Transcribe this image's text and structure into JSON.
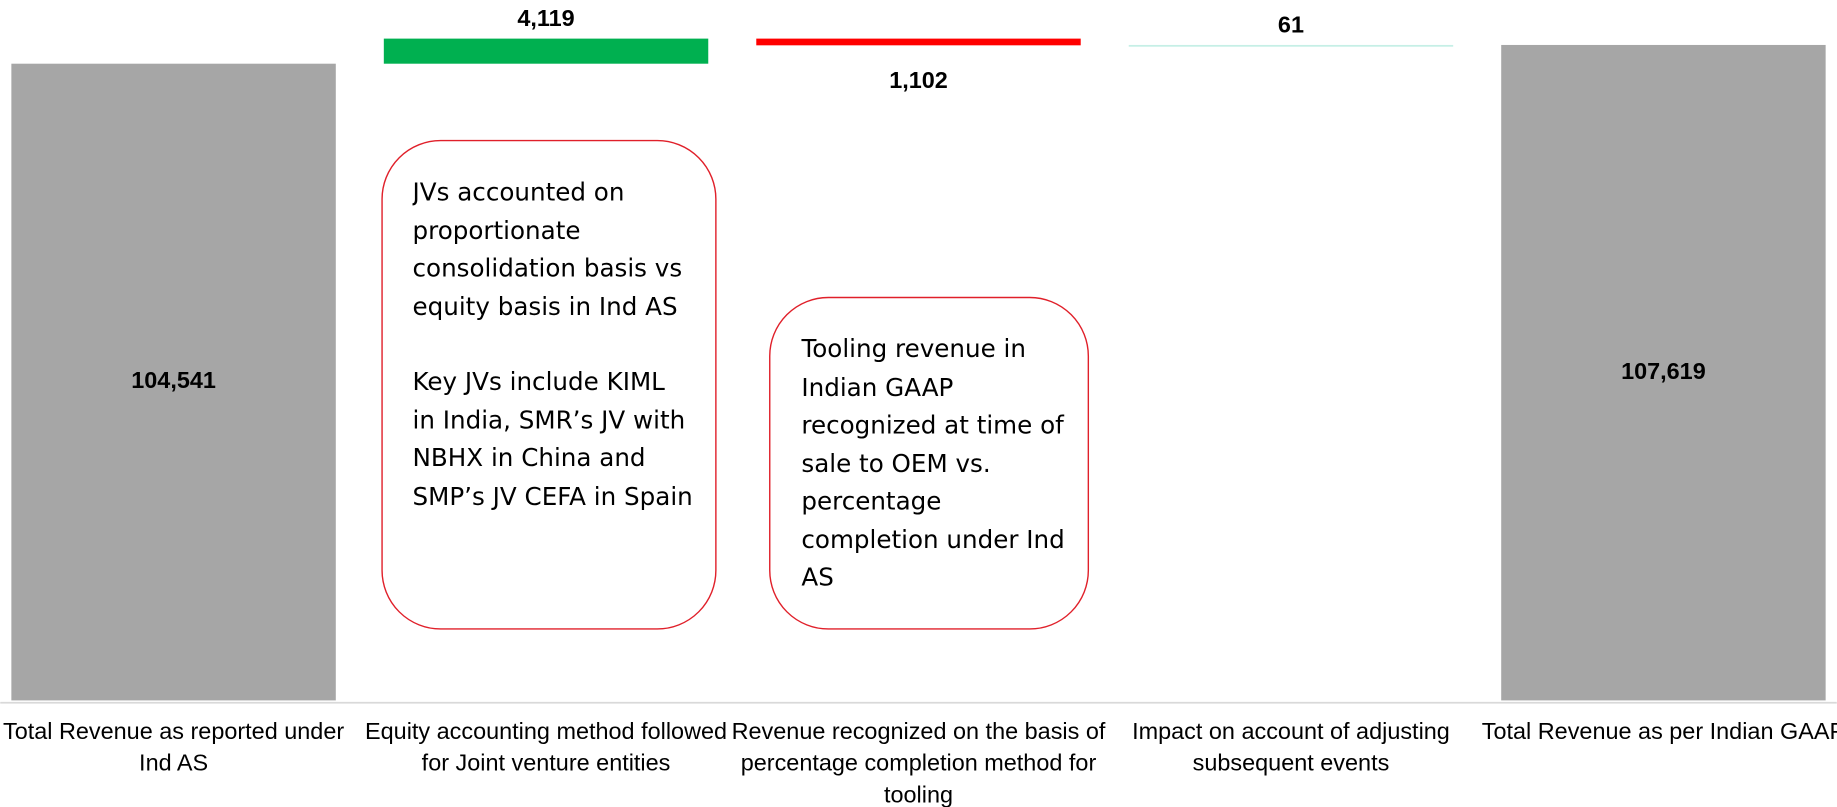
{
  "chart_data": {
    "type": "waterfall",
    "categories": [
      "Total Revenue as reported under Ind AS",
      "Equity accounting method followed for Joint venture entities",
      "Revenue recognized on the basis of percentage completion method  for tooling",
      "Impact on account of adjusting subsequent events",
      "Total Revenue as per Indian GAAP"
    ],
    "values": [
      104541,
      4119,
      -1102,
      61,
      107619
    ],
    "value_labels": [
      "104,541",
      "4,119",
      "1,102",
      "61",
      "107,619"
    ],
    "totals": [
      true,
      false,
      false,
      false,
      true
    ],
    "colors": [
      "#a6a6a6",
      "#00b050",
      "#ff0000",
      "#c6efe6",
      "#a6a6a6"
    ],
    "ylim": [
      0,
      115000
    ],
    "annotations": [
      {
        "category": 1,
        "paragraphs": [
          "JVs accounted on proportionate consolidation basis vs equity basis in Ind AS",
          "Key JVs include KIML in India,  SMR’s JV with NBHX in China and SMP’s JV CEFA in Spain"
        ]
      },
      {
        "category": 2,
        "paragraphs": [
          "Tooling revenue  in Indian GAAP recognized at time of sale to OEM vs. percentage completion under Ind AS"
        ]
      }
    ]
  }
}
